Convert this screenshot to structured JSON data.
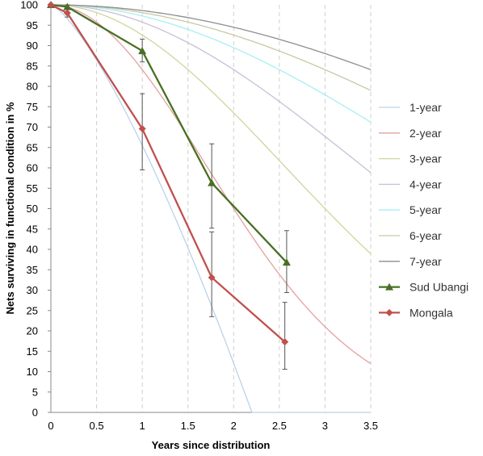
{
  "chart_data": {
    "type": "line",
    "title": "",
    "xlabel": "Years since distribution",
    "ylabel": "Nets surviving in functional condition in %",
    "xlim": [
      0,
      3.5
    ],
    "ylim": [
      0,
      100
    ],
    "xticks": [
      "0",
      "0.5",
      "1",
      "1.5",
      "2",
      "2.5",
      "3",
      "3.5"
    ],
    "yticks": [
      "0",
      "5",
      "10",
      "15",
      "20",
      "25",
      "30",
      "35",
      "40",
      "45",
      "50",
      "55",
      "60",
      "65",
      "70",
      "75",
      "80",
      "85",
      "90",
      "95",
      "100"
    ],
    "grid": "vertical dashed",
    "legend_position": "right",
    "reference_curves": [
      {
        "name": "1-year",
        "median_life_years": 1,
        "color": "#b9d3ea"
      },
      {
        "name": "2-year",
        "median_life_years": 2,
        "color": "#e3a19f"
      },
      {
        "name": "3-year",
        "median_life_years": 3,
        "color": "#cfd59a"
      },
      {
        "name": "4-year",
        "median_life_years": 4,
        "color": "#c8bfd6"
      },
      {
        "name": "5-year",
        "median_life_years": 5,
        "color": "#a6eff2"
      },
      {
        "name": "6-year",
        "median_life_years": 6,
        "color": "#c6c9a6"
      },
      {
        "name": "7-year",
        "median_life_years": 7,
        "color": "#8e8e8e"
      }
    ],
    "series": [
      {
        "name": "Sud Ubangi",
        "color": "#4a6f24",
        "marker": "triangle",
        "points": [
          {
            "x": 0,
            "y": 100
          },
          {
            "x": 0.18,
            "y": 99.5,
            "err_low": 1.5,
            "err_high": 0.5
          },
          {
            "x": 1.0,
            "y": 88.7,
            "err_low": 2.7,
            "err_high": 2.9
          },
          {
            "x": 1.76,
            "y": 56.3,
            "err_low": 11.1,
            "err_high": 9.6
          },
          {
            "x": 2.58,
            "y": 36.8,
            "err_low": 7.4,
            "err_high": 7.8
          }
        ]
      },
      {
        "name": "Mongala",
        "color": "#c0504d",
        "marker": "diamond",
        "points": [
          {
            "x": 0,
            "y": 100
          },
          {
            "x": 0.18,
            "y": 98.0,
            "err_low": 1.0,
            "err_high": 1.0
          },
          {
            "x": 1.0,
            "y": 69.6,
            "err_low": 10.1,
            "err_high": 8.6
          },
          {
            "x": 1.76,
            "y": 33.1,
            "err_low": 9.6,
            "err_high": 11.2
          },
          {
            "x": 2.56,
            "y": 17.3,
            "err_low": 6.7,
            "err_high": 9.7
          }
        ]
      }
    ]
  }
}
